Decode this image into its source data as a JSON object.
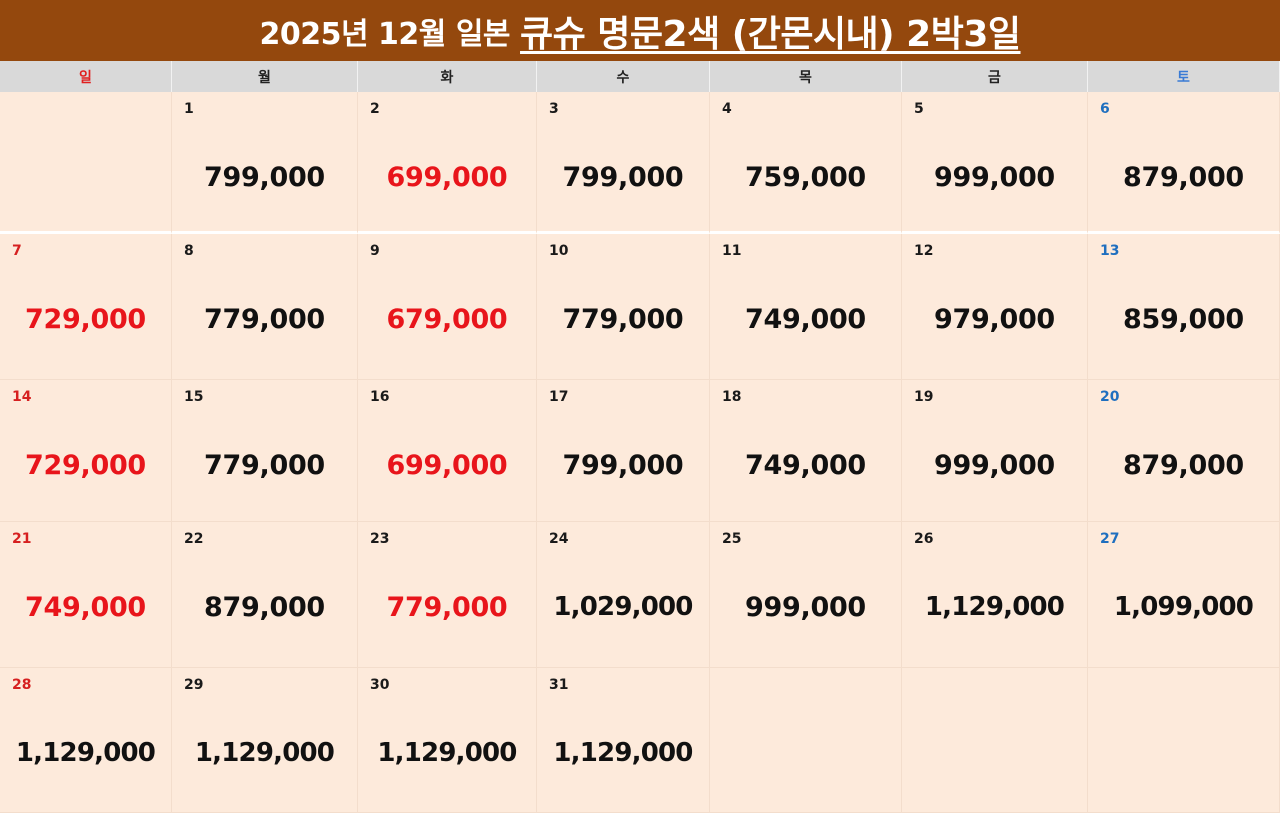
{
  "title": {
    "prefix": "2025년 12월 일본",
    "main": "큐슈 명문2색 (간몬시내) 2박3일"
  },
  "weekdays": [
    {
      "label": "일",
      "type": "sun"
    },
    {
      "label": "월",
      "type": "normal"
    },
    {
      "label": "화",
      "type": "normal"
    },
    {
      "label": "수",
      "type": "normal"
    },
    {
      "label": "목",
      "type": "normal"
    },
    {
      "label": "금",
      "type": "normal"
    },
    {
      "label": "토",
      "type": "sat"
    }
  ],
  "colors": {
    "banner": "#94480d",
    "cell": "#fdeadb",
    "price_red": "#e8151b",
    "sunday": "#d62020",
    "saturday": "#1f6fbf"
  },
  "weeks": [
    [
      null,
      {
        "day": "1",
        "price": "799,000",
        "highlight": false
      },
      {
        "day": "2",
        "price": "699,000",
        "highlight": true
      },
      {
        "day": "3",
        "price": "799,000",
        "highlight": false
      },
      {
        "day": "4",
        "price": "759,000",
        "highlight": false
      },
      {
        "day": "5",
        "price": "999,000",
        "highlight": false
      },
      {
        "day": "6",
        "price": "879,000",
        "highlight": false
      }
    ],
    [
      {
        "day": "7",
        "price": "729,000",
        "highlight": true
      },
      {
        "day": "8",
        "price": "779,000",
        "highlight": false
      },
      {
        "day": "9",
        "price": "679,000",
        "highlight": true
      },
      {
        "day": "10",
        "price": "779,000",
        "highlight": false
      },
      {
        "day": "11",
        "price": "749,000",
        "highlight": false
      },
      {
        "day": "12",
        "price": "979,000",
        "highlight": false
      },
      {
        "day": "13",
        "price": "859,000",
        "highlight": false
      }
    ],
    [
      {
        "day": "14",
        "price": "729,000",
        "highlight": true
      },
      {
        "day": "15",
        "price": "779,000",
        "highlight": false
      },
      {
        "day": "16",
        "price": "699,000",
        "highlight": true
      },
      {
        "day": "17",
        "price": "799,000",
        "highlight": false
      },
      {
        "day": "18",
        "price": "749,000",
        "highlight": false
      },
      {
        "day": "19",
        "price": "999,000",
        "highlight": false
      },
      {
        "day": "20",
        "price": "879,000",
        "highlight": false
      }
    ],
    [
      {
        "day": "21",
        "price": "749,000",
        "highlight": true
      },
      {
        "day": "22",
        "price": "879,000",
        "highlight": false
      },
      {
        "day": "23",
        "price": "779,000",
        "highlight": true
      },
      {
        "day": "24",
        "price": "1,029,000",
        "highlight": false
      },
      {
        "day": "25",
        "price": "999,000",
        "highlight": false
      },
      {
        "day": "26",
        "price": "1,129,000",
        "highlight": false
      },
      {
        "day": "27",
        "price": "1,099,000",
        "highlight": false
      }
    ],
    [
      {
        "day": "28",
        "price": "1,129,000",
        "highlight": false
      },
      {
        "day": "29",
        "price": "1,129,000",
        "highlight": false
      },
      {
        "day": "30",
        "price": "1,129,000",
        "highlight": false
      },
      {
        "day": "31",
        "price": "1,129,000",
        "highlight": false
      },
      null,
      null,
      null
    ]
  ]
}
